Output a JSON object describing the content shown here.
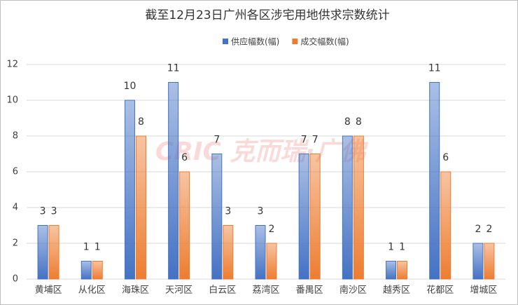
{
  "chart_data": {
    "type": "bar",
    "title": "截至12月23日广州各区涉宅用地供求宗数统计",
    "watermark": "CRIC 克而瑞·广佛",
    "categories": [
      "黄埔区",
      "从化区",
      "海珠区",
      "天河区",
      "白云区",
      "荔湾区",
      "番禺区",
      "南沙区",
      "越秀区",
      "花都区",
      "增城区"
    ],
    "series": [
      {
        "name": "供应幅数(幅)",
        "color": "#4472c4",
        "values": [
          3,
          1,
          10,
          11,
          7,
          3,
          7,
          8,
          1,
          11,
          2
        ]
      },
      {
        "name": "成交幅数(幅)",
        "color": "#ed7d31",
        "values": [
          3,
          1,
          8,
          6,
          3,
          2,
          7,
          8,
          1,
          6,
          2
        ]
      }
    ],
    "ylim": [
      0,
      12
    ],
    "yticks": [
      0,
      2,
      4,
      6,
      8,
      10,
      12
    ],
    "grid": true,
    "legend": "top"
  }
}
